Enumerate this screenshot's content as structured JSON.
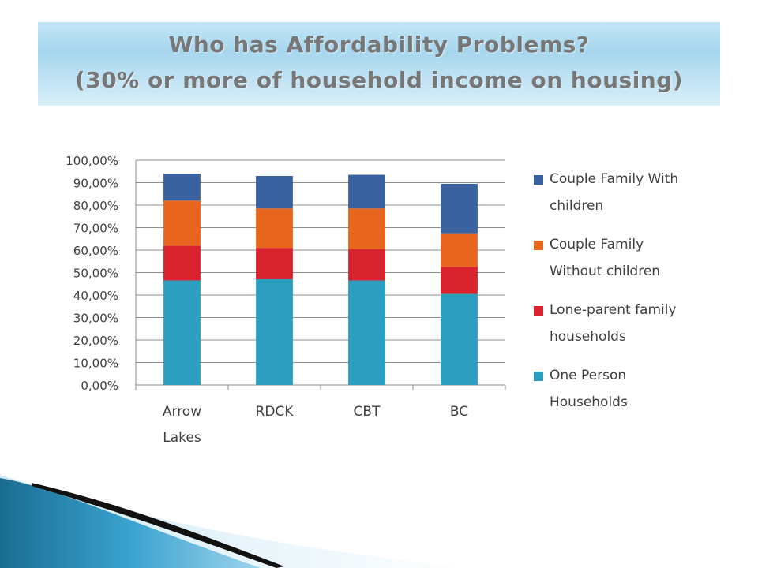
{
  "title": {
    "line1": "Who has Affordability Problems?",
    "line2": "(30% or more of household income on housing)"
  },
  "chart_data": {
    "type": "bar",
    "stacked": true,
    "categories": [
      [
        "Arrow",
        "Lakes"
      ],
      [
        "RDCK"
      ],
      [
        "CBT"
      ],
      [
        "BC"
      ]
    ],
    "series": [
      {
        "name": "One Person Households",
        "color": "#2c9fc0",
        "values": [
          46.5,
          47,
          46.5,
          40.5
        ]
      },
      {
        "name": "Lone-parent family households",
        "color": "#d9232e",
        "values": [
          15.5,
          14,
          14,
          12
        ]
      },
      {
        "name": "Couple Family Without children",
        "color": "#e8651e",
        "values": [
          20,
          17.5,
          18,
          15
        ]
      },
      {
        "name": "Couple Family With children",
        "color": "#3a62a0",
        "values": [
          12,
          14.5,
          15,
          22
        ]
      }
    ],
    "ylim": [
      0,
      100
    ],
    "yticks": [
      "0,00%",
      "10,00%",
      "20,00%",
      "30,00%",
      "40,00%",
      "50,00%",
      "60,00%",
      "70,00%",
      "80,00%",
      "90,00%",
      "100,00%"
    ],
    "grid": true,
    "legend_position": "right"
  },
  "legend": [
    {
      "lines": [
        "Couple Family With",
        "children"
      ],
      "color": "#3a62a0"
    },
    {
      "lines": [
        "Couple Family",
        "Without children"
      ],
      "color": "#e8651e"
    },
    {
      "lines": [
        "Lone-parent family",
        "households"
      ],
      "color": "#d9232e"
    },
    {
      "lines": [
        "One Person",
        "Households"
      ],
      "color": "#2c9fc0"
    }
  ]
}
